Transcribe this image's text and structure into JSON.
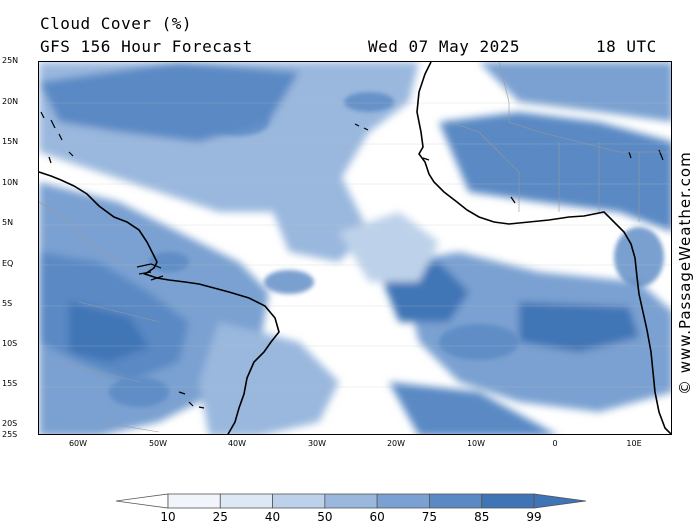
{
  "header": {
    "title": "Cloud Cover (%)",
    "subtitle": "GFS 156 Hour Forecast",
    "datetime": "Wed 07 May 2025",
    "utc": "18 UTC"
  },
  "watermark": "© www.PassageWeather.com",
  "map": {
    "lat_labels": [
      "25N",
      "20N",
      "15N",
      "10N",
      "5N",
      "EQ",
      "5S",
      "10S",
      "15S",
      "20S",
      "25S"
    ],
    "lon_labels": [
      "60W",
      "50W",
      "40W",
      "30W",
      "20W",
      "10W",
      "0",
      "10E"
    ],
    "lat_range": [
      -25,
      25
    ],
    "lon_range": [
      -65,
      12
    ],
    "colors": {
      "ocean": "#ffffff",
      "coast": "#000000",
      "border": "#9a9a9a",
      "grid": "#bfbfbf"
    }
  },
  "legend": {
    "labels": [
      "10",
      "25",
      "40",
      "50",
      "60",
      "75",
      "85",
      "99"
    ],
    "colors": [
      "#ffffff",
      "#f1f5fb",
      "#dde8f5",
      "#bdd2ea",
      "#9ab8de",
      "#7aa1d1",
      "#5a89c4",
      "#3f74b6"
    ]
  }
}
